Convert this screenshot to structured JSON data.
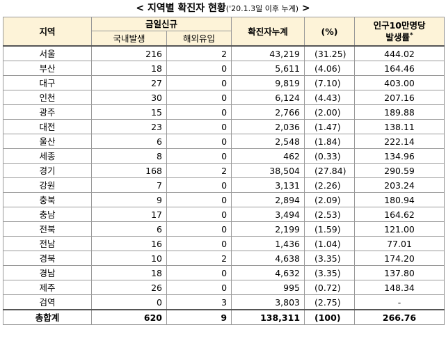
{
  "title": {
    "main": "< 지역별 확진자 현황",
    "note": "('20.1.3일 이후 누계)",
    "end": " >"
  },
  "table": {
    "headers": {
      "region": "지역",
      "new": "금일신규",
      "domestic": "국내발생",
      "overseas": "해외유입",
      "total": "확진자누계",
      "pct": "(%)",
      "rate_line1": "인구10만명당",
      "rate_line2": "발생률",
      "rate_mark": "*"
    },
    "rows": [
      [
        "서울",
        "216",
        "2",
        "43,219",
        "(31.25)",
        "444.02"
      ],
      [
        "부산",
        "18",
        "0",
        "5,611",
        "(4.06)",
        "164.46"
      ],
      [
        "대구",
        "27",
        "0",
        "9,819",
        "(7.10)",
        "403.00"
      ],
      [
        "인천",
        "30",
        "0",
        "6,124",
        "(4.43)",
        "207.16"
      ],
      [
        "광주",
        "15",
        "0",
        "2,766",
        "(2.00)",
        "189.88"
      ],
      [
        "대전",
        "23",
        "0",
        "2,036",
        "(1.47)",
        "138.11"
      ],
      [
        "울산",
        "6",
        "0",
        "2,548",
        "(1.84)",
        "222.14"
      ],
      [
        "세종",
        "8",
        "0",
        "462",
        "(0.33)",
        "134.96"
      ],
      [
        "경기",
        "168",
        "2",
        "38,504",
        "(27.84)",
        "290.59"
      ],
      [
        "강원",
        "7",
        "0",
        "3,131",
        "(2.26)",
        "203.24"
      ],
      [
        "충북",
        "9",
        "0",
        "2,894",
        "(2.09)",
        "180.94"
      ],
      [
        "충남",
        "17",
        "0",
        "3,494",
        "(2.53)",
        "164.62"
      ],
      [
        "전북",
        "6",
        "0",
        "2,199",
        "(1.59)",
        "121.00"
      ],
      [
        "전남",
        "16",
        "0",
        "1,436",
        "(1.04)",
        "77.01"
      ],
      [
        "경북",
        "10",
        "2",
        "4,638",
        "(3.35)",
        "174.20"
      ],
      [
        "경남",
        "18",
        "0",
        "4,632",
        "(3.35)",
        "137.80"
      ],
      [
        "제주",
        "26",
        "0",
        "995",
        "(0.72)",
        "148.34"
      ],
      [
        "검역",
        "0",
        "3",
        "3,803",
        "(2.75)",
        "-"
      ]
    ],
    "total": [
      "총합계",
      "620",
      "9",
      "138,311",
      "(100)",
      "266.76"
    ]
  }
}
